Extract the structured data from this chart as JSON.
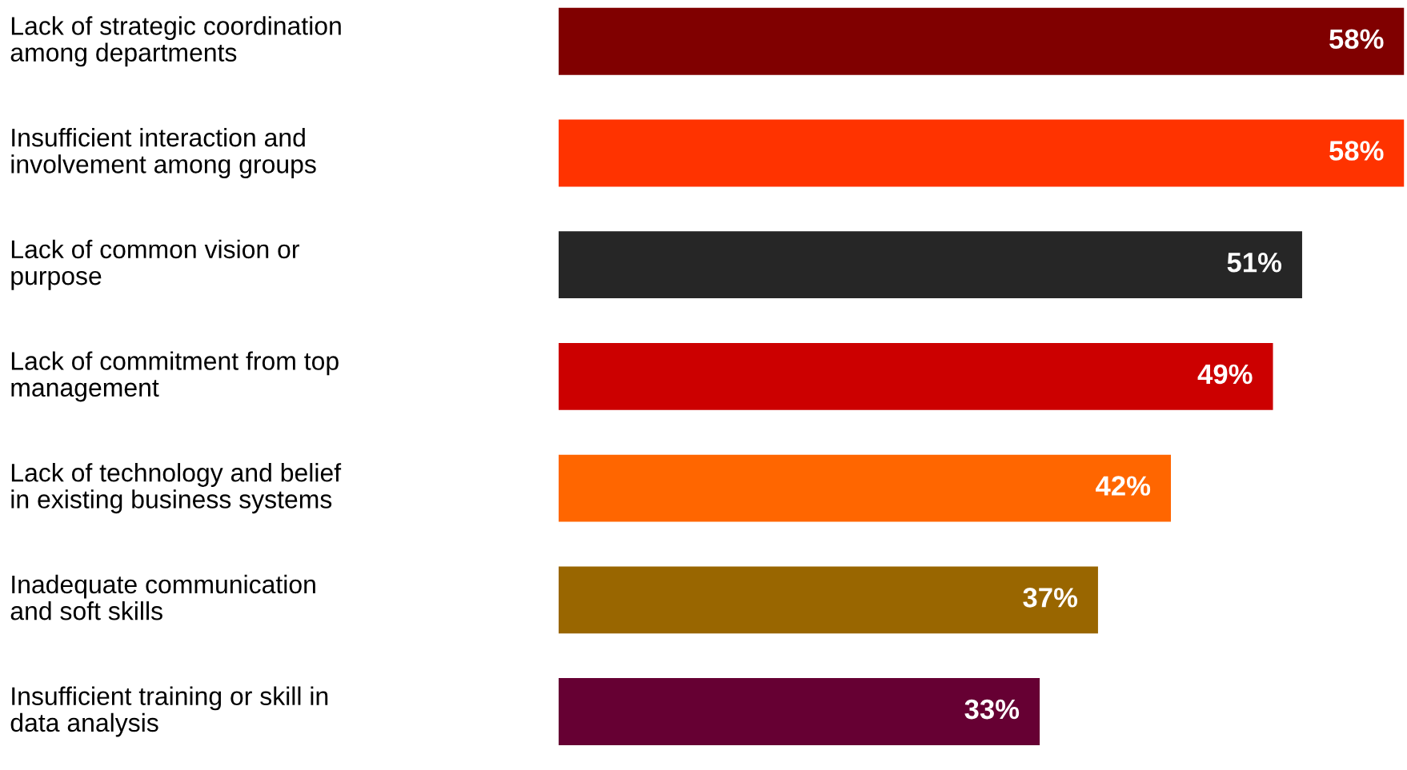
{
  "chart_data": {
    "type": "bar",
    "orientation": "horizontal",
    "data_labels": true,
    "categories": [
      "Lack of strategic coordination\namong departments",
      "Insufficient interaction and\ninvolvement among groups",
      "Lack of common vision or\npurpose",
      "Lack of commitment from top\nmanagement",
      "Lack of technology and belief\nin existing business systems",
      "Inadequate communication\nand soft skills",
      "Insufficient training or skill in\ndata analysis"
    ],
    "values": [
      58,
      58,
      51,
      49,
      42,
      37,
      33
    ],
    "colors": [
      "#800000",
      "#ff3300",
      "#262626",
      "#cc0000",
      "#ff6600",
      "#996600",
      "#660033"
    ],
    "value_labels": [
      "58%",
      "58%",
      "51%",
      "49%",
      "42%",
      "37%",
      "33%"
    ]
  }
}
